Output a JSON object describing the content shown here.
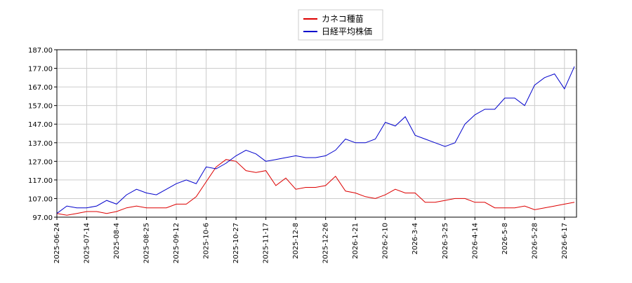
{
  "chart_data": {
    "type": "line",
    "categories": [
      "2025-06-24",
      null,
      null,
      "2025-07-14",
      null,
      null,
      "2025-08-4",
      null,
      null,
      "2025-08-25",
      null,
      null,
      "2025-09-12",
      null,
      null,
      "2025-10-6",
      null,
      null,
      "2025-10-27",
      null,
      null,
      "2025-11-17",
      null,
      null,
      "2025-12-8",
      null,
      null,
      "2025-12-26",
      null,
      null,
      "2026-1-21",
      null,
      null,
      "2026-2-10",
      null,
      null,
      "2026-3-4",
      null,
      null,
      "2026-3-25",
      null,
      null,
      "2026-4-14",
      null,
      null,
      "2026-5-8",
      null,
      null,
      "2026-5-28",
      null,
      null,
      "2026-6-17",
      null
    ],
    "series": [
      {
        "name": "カネコ種苗",
        "color": "#dd0000",
        "values": [
          99,
          98,
          99,
          100,
          100,
          99,
          100,
          102,
          103,
          102,
          102,
          102,
          104,
          104,
          108,
          116,
          124,
          128,
          127,
          122,
          121,
          122,
          114,
          118,
          112,
          113,
          113,
          114,
          119,
          111,
          110,
          108,
          107,
          109,
          112,
          110,
          110,
          105,
          105,
          106,
          107,
          107,
          105,
          105,
          102,
          102,
          102,
          103,
          101,
          102,
          103,
          104,
          105
        ]
      },
      {
        "name": "日経平均株価",
        "color": "#0000cc",
        "values": [
          99,
          103,
          102,
          102,
          103,
          106,
          104,
          109,
          112,
          110,
          109,
          112,
          115,
          117,
          115,
          124,
          123,
          126,
          130,
          133,
          131,
          127,
          128,
          129,
          130,
          129,
          129,
          130,
          133,
          139,
          137,
          137,
          139,
          148,
          146,
          151,
          141,
          139,
          137,
          135,
          137,
          147,
          152,
          155,
          155,
          161,
          161,
          157,
          168,
          172,
          174,
          166,
          178
        ]
      }
    ],
    "ylim": [
      97,
      187
    ],
    "yticks": [
      {
        "value": 97,
        "label": "97.00"
      },
      {
        "value": 107,
        "label": "107.00"
      },
      {
        "value": 117,
        "label": "117.00"
      },
      {
        "value": 127,
        "label": "127.00"
      },
      {
        "value": 137,
        "label": "137.00"
      },
      {
        "value": 147,
        "label": "147.00"
      },
      {
        "value": 157,
        "label": "157.00"
      },
      {
        "value": 167,
        "label": "167.00"
      },
      {
        "value": 177,
        "label": "177.00"
      },
      {
        "value": 187,
        "label": "187.00"
      }
    ],
    "grid": true
  }
}
